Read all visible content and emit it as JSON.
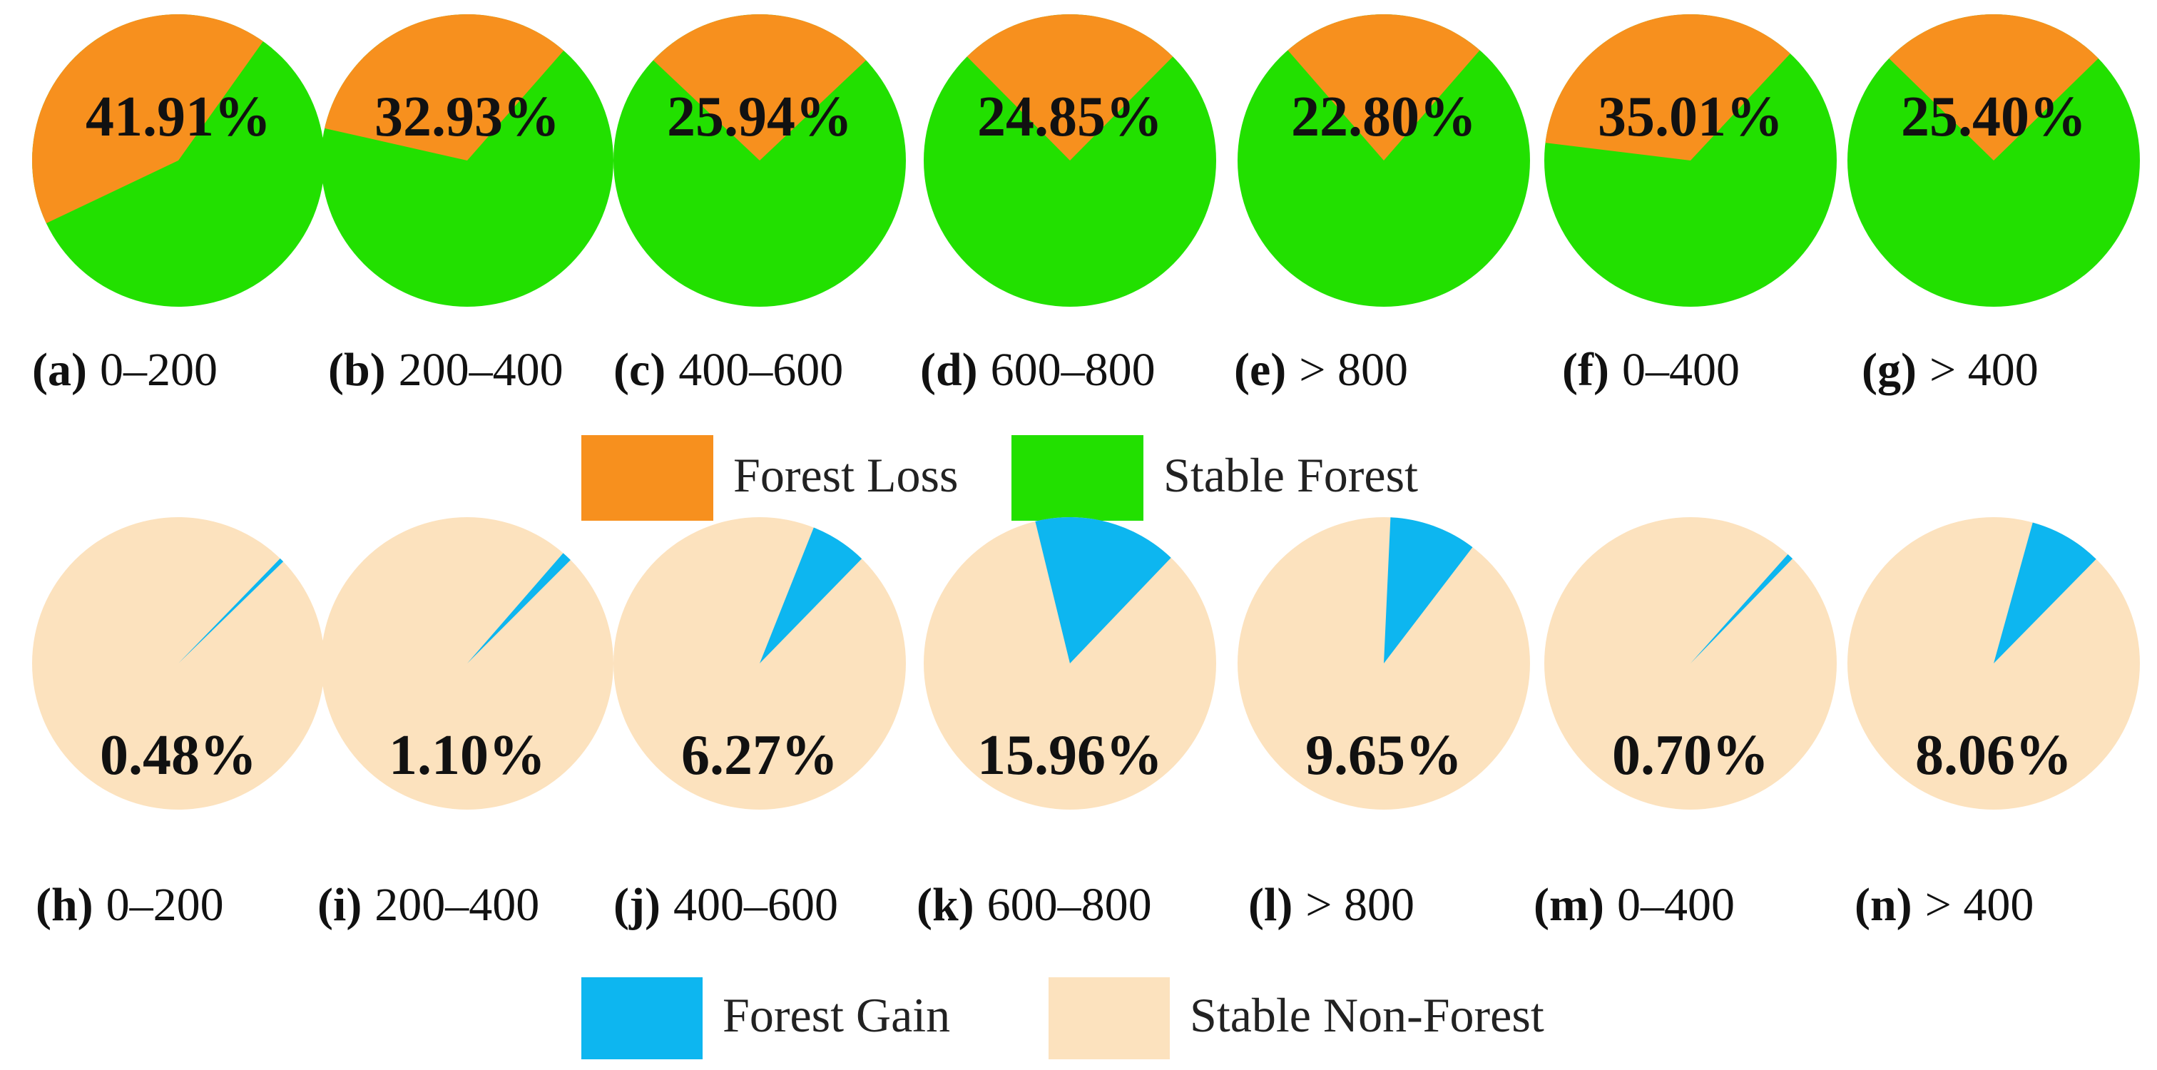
{
  "chart_data": [
    {
      "type": "pie",
      "row": "forest-change",
      "series_names": [
        "Forest Loss",
        "Stable Forest"
      ],
      "colors": {
        "highlight": "#F7901E",
        "base": "#22E000"
      },
      "pies": [
        {
          "letter": "(a)",
          "range": "0–200",
          "value": 41.91,
          "label": "41.91%"
        },
        {
          "letter": "(b)",
          "range": "200–400",
          "value": 32.93,
          "label": "32.93%"
        },
        {
          "letter": "(c)",
          "range": "400–600",
          "value": 25.94,
          "label": "25.94%"
        },
        {
          "letter": "(d)",
          "range": "600–800",
          "value": 24.85,
          "label": "24.85%"
        },
        {
          "letter": "(e)",
          "range": "> 800",
          "value": 22.8,
          "label": "22.80%"
        },
        {
          "letter": "(f)",
          "range": "0–400",
          "value": 35.01,
          "label": "35.01%"
        },
        {
          "letter": "(g)",
          "range": "> 400",
          "value": 25.4,
          "label": "25.40%"
        }
      ],
      "legend": [
        {
          "label": "Forest Loss",
          "color": "#F7901E"
        },
        {
          "label": "Stable Forest",
          "color": "#22E000"
        }
      ]
    },
    {
      "type": "pie",
      "row": "non-forest-change",
      "series_names": [
        "Forest Gain",
        "Stable Non-Forest"
      ],
      "colors": {
        "highlight": "#0DB6F0",
        "base": "#FCE2BE"
      },
      "pies": [
        {
          "letter": "(h)",
          "range": "0–200",
          "value": 0.48,
          "label": "0.48%"
        },
        {
          "letter": "(i)",
          "range": "200–400",
          "value": 1.1,
          "label": "1.10%"
        },
        {
          "letter": "(j)",
          "range": "400–600",
          "value": 6.27,
          "label": "6.27%"
        },
        {
          "letter": "(k)",
          "range": "600–800",
          "value": 15.96,
          "label": "15.96%"
        },
        {
          "letter": "(l)",
          "range": "> 800",
          "value": 9.65,
          "label": "9.65%"
        },
        {
          "letter": "(m)",
          "range": "0–400",
          "value": 0.7,
          "label": "0.70%"
        },
        {
          "letter": "(n)",
          "range": "> 400",
          "value": 8.06,
          "label": "8.06%"
        }
      ],
      "legend": [
        {
          "label": "Forest Gain",
          "color": "#0DB6F0"
        },
        {
          "label": "Stable Non-Forest",
          "color": "#FCE2BE"
        }
      ]
    }
  ]
}
